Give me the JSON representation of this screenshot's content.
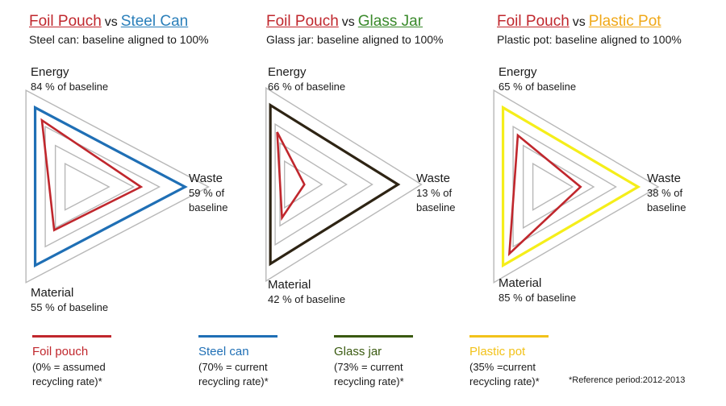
{
  "chart_data": [
    {
      "type": "radar",
      "title_left": "Foil Pouch",
      "title_vs": "vs",
      "title_right": "Steel Can",
      "title_right_color": "#2a7fba",
      "subtitle": "Steel can: baseline aligned to 100%",
      "axes": [
        {
          "label": "Energy",
          "value_text": "84 % of baseline",
          "value": 84
        },
        {
          "label": "Waste",
          "value_text": "59 % of baseline",
          "value": 59
        },
        {
          "label": "Material",
          "value_text": "55 % of baseline",
          "value": 55
        }
      ],
      "baseline_color": "#1f6fb5",
      "pouch_color": "#c0272d",
      "baseline": 100
    },
    {
      "type": "radar",
      "title_left": "Foil Pouch",
      "title_vs": "vs",
      "title_right": "Glass Jar",
      "title_right_color": "#3a8a2b",
      "subtitle": "Glass jar: baseline aligned to 100%",
      "axes": [
        {
          "label": "Energy",
          "value_text": "66 % of baseline",
          "value": 66
        },
        {
          "label": "Waste",
          "value_text": "13 % of baseline",
          "value": 13
        },
        {
          "label": "Material",
          "value_text": "42 % of baseline",
          "value": 42
        }
      ],
      "baseline_color": "#2e2414",
      "pouch_color": "#c0272d",
      "baseline": 100
    },
    {
      "type": "radar",
      "title_left": "Foil Pouch",
      "title_vs": "vs",
      "title_right": "Plastic Pot",
      "title_right_color": "#f0a818",
      "subtitle": "Plastic pot: baseline aligned to 100%",
      "axes": [
        {
          "label": "Energy",
          "value_text": "65 % of baseline",
          "value": 65
        },
        {
          "label": "Waste",
          "value_text": "38 % of baseline",
          "value": 38
        },
        {
          "label": "Material",
          "value_text": "85 % of baseline",
          "value": 85
        }
      ],
      "baseline_color": "#f5ee1a",
      "pouch_color": "#c0272d",
      "baseline": 100
    }
  ],
  "legend": [
    {
      "name": "Foil pouch",
      "note": "(0% = assumed recycling rate)*",
      "color": "#c0272d"
    },
    {
      "name": "Steel can",
      "note": "(70% = current recycling rate)*",
      "color": "#1f6fb5"
    },
    {
      "name": "Glass jar",
      "note": "(73% = current recycling rate)*",
      "color": "#3a5a10"
    },
    {
      "name": "Plastic pot",
      "note": "(35% =current recycling rate)*",
      "color": "#f2c21a"
    }
  ],
  "reference_note": "*Reference period:2012-2013"
}
